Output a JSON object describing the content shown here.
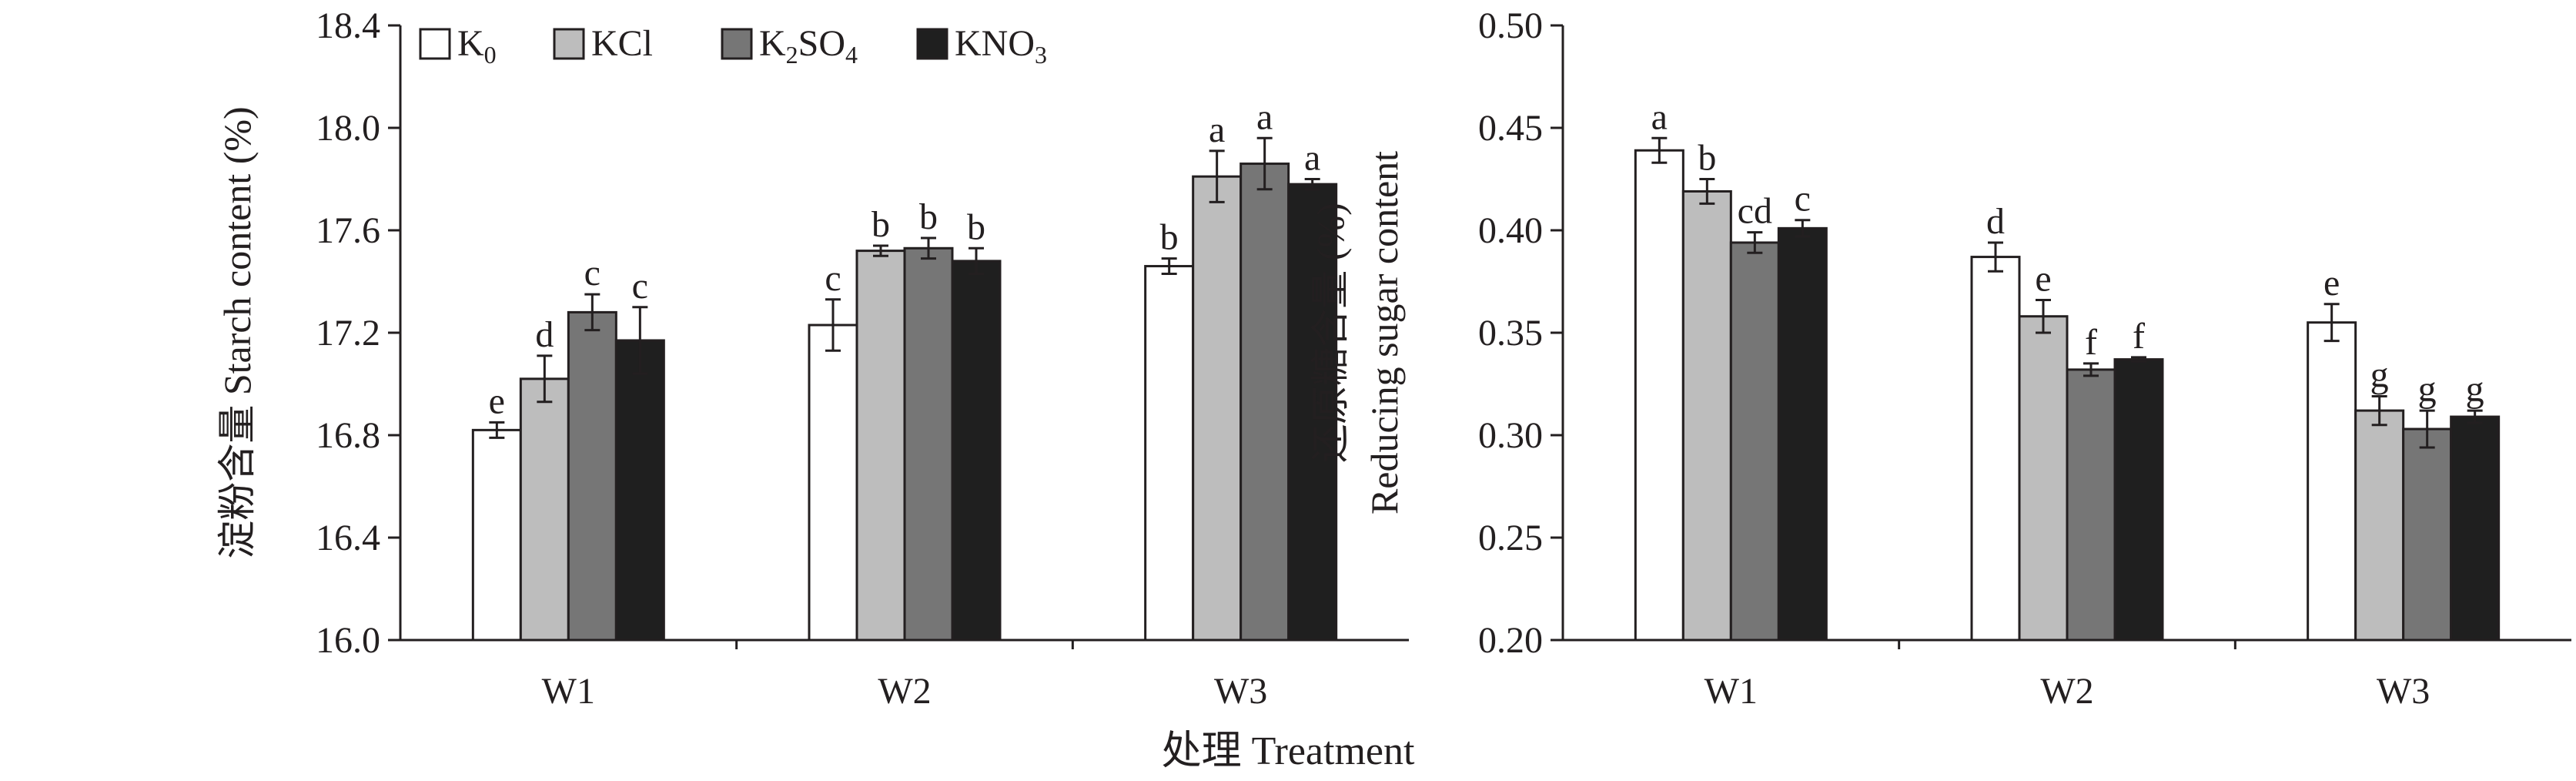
{
  "figure": {
    "xlabel": "处理 Treatment"
  },
  "legend": [
    {
      "prefix": "K",
      "sub": "0",
      "mid": "",
      "sub2": "",
      "color": "#ffffff"
    },
    {
      "prefix": "KCl",
      "sub": "",
      "mid": "",
      "sub2": "",
      "color": "#bdbdbd"
    },
    {
      "prefix": "K",
      "sub": "2",
      "mid": "SO",
      "sub2": "4",
      "color": "#767676"
    },
    {
      "prefix": "KNO",
      "sub": "3",
      "mid": "",
      "sub2": "",
      "color": "#1f1f1f"
    }
  ],
  "chart_data": [
    {
      "type": "bar",
      "ylabel": "淀粉含量 Starch content (%)",
      "ylim": [
        16.0,
        18.4
      ],
      "yticks": [
        "16.0",
        "16.4",
        "16.8",
        "17.2",
        "17.6",
        "18.0",
        "18.4"
      ],
      "categories": [
        "W1",
        "W2",
        "W3"
      ],
      "series": [
        {
          "name": "K0",
          "values": [
            16.82,
            17.23,
            17.46
          ],
          "errors": [
            0.03,
            0.1,
            0.03
          ],
          "letters": [
            "e",
            "c",
            "b"
          ]
        },
        {
          "name": "KCl",
          "values": [
            17.02,
            17.52,
            17.81
          ],
          "errors": [
            0.09,
            0.02,
            0.1
          ],
          "letters": [
            "d",
            "b",
            "a"
          ]
        },
        {
          "name": "K2SO4",
          "values": [
            17.28,
            17.53,
            17.86
          ],
          "errors": [
            0.07,
            0.04,
            0.1
          ],
          "letters": [
            "c",
            "b",
            "a"
          ]
        },
        {
          "name": "KNO3",
          "values": [
            17.17,
            17.48,
            17.78
          ],
          "errors": [
            0.13,
            0.05,
            0.02
          ],
          "letters": [
            "c",
            "b",
            "a"
          ]
        }
      ],
      "legend": "top-left"
    },
    {
      "type": "bar",
      "ylabel": "还原糖含量 (%)",
      "ylabel2": "Reducing sugar content",
      "ylim": [
        0.2,
        0.5
      ],
      "yticks": [
        "0.20",
        "0.25",
        "0.30",
        "0.35",
        "0.40",
        "0.45",
        "0.50"
      ],
      "categories": [
        "W1",
        "W2",
        "W3"
      ],
      "series": [
        {
          "name": "K0",
          "values": [
            0.439,
            0.387,
            0.355
          ],
          "errors": [
            0.006,
            0.007,
            0.009
          ],
          "letters": [
            "a",
            "d",
            "e"
          ]
        },
        {
          "name": "KCl",
          "values": [
            0.419,
            0.358,
            0.312
          ],
          "errors": [
            0.006,
            0.008,
            0.007
          ],
          "letters": [
            "b",
            "e",
            "g"
          ]
        },
        {
          "name": "K2SO4",
          "values": [
            0.394,
            0.332,
            0.303
          ],
          "errors": [
            0.005,
            0.003,
            0.009
          ],
          "letters": [
            "cd",
            "f",
            "g"
          ]
        },
        {
          "name": "KNO3",
          "values": [
            0.401,
            0.337,
            0.309
          ],
          "errors": [
            0.004,
            0.001,
            0.003
          ],
          "letters": [
            "c",
            "f",
            "g"
          ]
        }
      ]
    }
  ]
}
